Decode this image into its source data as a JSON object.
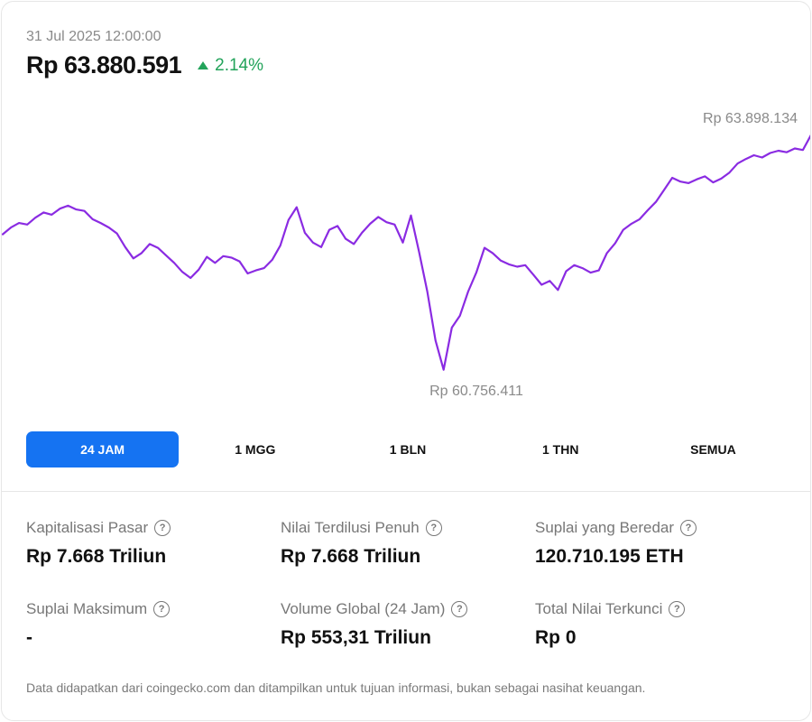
{
  "header": {
    "timestamp": "31 Jul 2025 12:00:00",
    "price": "Rp 63.880.591",
    "change": "2.14%",
    "change_direction": "up",
    "change_color": "#22a35a"
  },
  "chart_data": {
    "type": "line",
    "line_color": "#8a2be2",
    "high_label": "Rp 63.898.134",
    "low_label": "Rp 60.756.411",
    "y_min": 60756411,
    "y_max": 63898134,
    "values": [
      62560000,
      62650000,
      62710000,
      62690000,
      62780000,
      62850000,
      62820000,
      62900000,
      62940000,
      62890000,
      62870000,
      62760000,
      62710000,
      62650000,
      62570000,
      62390000,
      62240000,
      62310000,
      62430000,
      62380000,
      62280000,
      62180000,
      62060000,
      61980000,
      62090000,
      62260000,
      62180000,
      62270000,
      62250000,
      62200000,
      62040000,
      62080000,
      62110000,
      62220000,
      62410000,
      62750000,
      62920000,
      62580000,
      62450000,
      62390000,
      62620000,
      62670000,
      62500000,
      62430000,
      62580000,
      62700000,
      62790000,
      62720000,
      62690000,
      62450000,
      62810000,
      62320000,
      61800000,
      61150000,
      60760000,
      61320000,
      61480000,
      61800000,
      62050000,
      62380000,
      62310000,
      62210000,
      62160000,
      62130000,
      62150000,
      62020000,
      61890000,
      61940000,
      61820000,
      62070000,
      62150000,
      62110000,
      62050000,
      62080000,
      62310000,
      62440000,
      62620000,
      62700000,
      62760000,
      62880000,
      62990000,
      63150000,
      63310000,
      63260000,
      63240000,
      63290000,
      63330000,
      63250000,
      63300000,
      63380000,
      63500000,
      63560000,
      63610000,
      63580000,
      63640000,
      63670000,
      63650000,
      63700000,
      63680000,
      63880591
    ]
  },
  "tabs": [
    {
      "label": "24 JAM",
      "active": true
    },
    {
      "label": "1 MGG",
      "active": false
    },
    {
      "label": "1 BLN",
      "active": false
    },
    {
      "label": "1 THN",
      "active": false
    },
    {
      "label": "SEMUA",
      "active": false
    }
  ],
  "stats": [
    {
      "label": "Kapitalisasi Pasar",
      "value": "Rp 7.668 Triliun"
    },
    {
      "label": "Nilai Terdilusi Penuh",
      "value": "Rp 7.668 Triliun"
    },
    {
      "label": "Suplai yang Beredar",
      "value": "120.710.195 ETH"
    },
    {
      "label": "Suplai Maksimum",
      "value": "-"
    },
    {
      "label": "Volume Global (24 Jam)",
      "value": "Rp 553,31 Triliun"
    },
    {
      "label": "Total Nilai Terkunci",
      "value": "Rp 0"
    }
  ],
  "help_icon": "question-circle-icon",
  "help_glyph": "?",
  "disclaimer": "Data didapatkan dari coingecko.com dan ditampilkan untuk tujuan informasi, bukan sebagai nasihat keuangan.",
  "accent_color": "#1573f2"
}
